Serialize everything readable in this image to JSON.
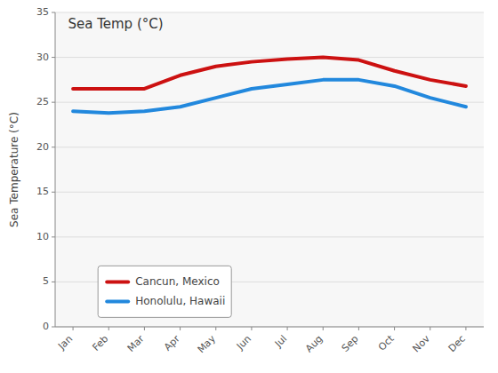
{
  "chart_data": {
    "type": "line",
    "title": "Sea Temp (°C)",
    "ylabel": "Sea Temperature (°C)",
    "categories": [
      "Jan",
      "Feb",
      "Mar",
      "Apr",
      "May",
      "Jun",
      "Jul",
      "Aug",
      "Sep",
      "Oct",
      "Nov",
      "Dec"
    ],
    "series": [
      {
        "name": "Cancun, Mexico",
        "color": "#cc1111",
        "values": [
          26.5,
          26.5,
          26.5,
          28.0,
          29.0,
          29.5,
          29.8,
          30.0,
          29.7,
          28.5,
          27.5,
          26.8
        ]
      },
      {
        "name": "Honolulu, Hawaii",
        "color": "#2288dd",
        "values": [
          24.0,
          23.8,
          24.0,
          24.5,
          25.5,
          26.5,
          27.0,
          27.5,
          27.5,
          26.8,
          25.5,
          24.5
        ]
      }
    ],
    "ylim": [
      0,
      35
    ],
    "yticks": [
      0,
      5,
      10,
      15,
      20,
      25,
      30,
      35
    ],
    "grid": true,
    "legend": "lower left"
  }
}
